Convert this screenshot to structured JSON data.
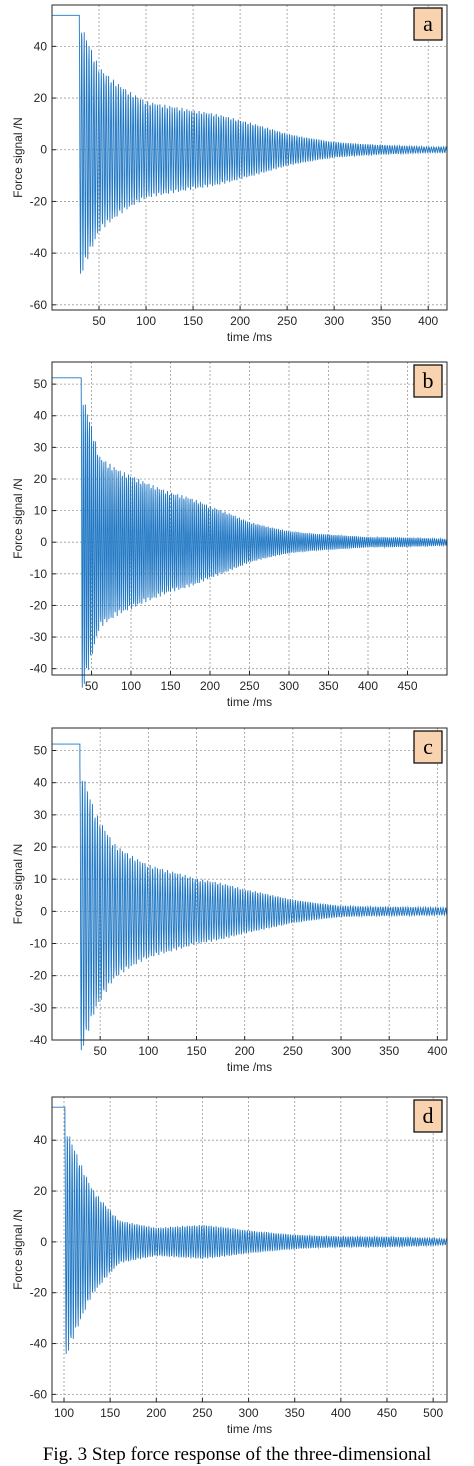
{
  "caption": "Fig. 3 Step force response of the three-dimensional",
  "colors": {
    "signal": "#1f77c4",
    "label_box_fill": "#f9d3b0",
    "grid": "#9a9a9a"
  },
  "chart_data": [
    {
      "type": "line",
      "panel_label": "a",
      "xlabel": "time /ms",
      "ylabel": "Force signal /N",
      "xlim": [
        0,
        420
      ],
      "ylim": [
        -62,
        56
      ],
      "xticks": [
        50,
        100,
        150,
        200,
        250,
        300,
        350,
        400
      ],
      "yticks": [
        -60,
        -40,
        -20,
        0,
        20,
        40
      ],
      "grid": true,
      "step": {
        "initial": 52,
        "release_time": 29
      },
      "envelope": [
        [
          30,
          50
        ],
        [
          50,
          35
        ],
        [
          100,
          22
        ],
        [
          150,
          15
        ],
        [
          200,
          10
        ],
        [
          250,
          6
        ],
        [
          300,
          3.5
        ],
        [
          350,
          2
        ],
        [
          400,
          1
        ],
        [
          420,
          1
        ]
      ],
      "series": [
        {
          "values_summary": "oscillation decaying from about +/-50 N to 0 N"
        }
      ]
    },
    {
      "type": "line",
      "panel_label": "b",
      "xlabel": "time /ms",
      "ylabel": "Force signal /N",
      "xlim": [
        0,
        500
      ],
      "ylim": [
        -42,
        57
      ],
      "xticks": [
        50,
        100,
        150,
        200,
        250,
        300,
        350,
        400,
        450
      ],
      "yticks": [
        -40,
        -30,
        -20,
        -10,
        0,
        10,
        20,
        30,
        40,
        50
      ],
      "grid": true,
      "step": {
        "initial": 52,
        "release_time": 37
      },
      "envelope": [
        [
          38,
          48
        ],
        [
          50,
          39
        ],
        [
          60,
          30
        ],
        [
          100,
          25
        ],
        [
          150,
          16
        ],
        [
          200,
          10
        ],
        [
          250,
          6
        ],
        [
          300,
          4
        ],
        [
          400,
          1.5
        ],
        [
          500,
          1
        ]
      ],
      "series": [
        {
          "values_summary": "oscillation decaying from about +48 / -39 N to 0 N"
        }
      ]
    },
    {
      "type": "line",
      "panel_label": "c",
      "xlabel": "time /ms",
      "ylabel": "Force signal /N",
      "xlim": [
        0,
        410
      ],
      "ylim": [
        -40,
        57
      ],
      "xticks": [
        50,
        100,
        150,
        200,
        250,
        300,
        350,
        400
      ],
      "yticks": [
        -40,
        -30,
        -20,
        -10,
        0,
        10,
        20,
        30,
        40,
        50
      ],
      "grid": true,
      "step": {
        "initial": 52,
        "release_time": 29
      },
      "envelope": [
        [
          30,
          45
        ],
        [
          45,
          33
        ],
        [
          65,
          24
        ],
        [
          100,
          17
        ],
        [
          150,
          10
        ],
        [
          200,
          6
        ],
        [
          250,
          3.5
        ],
        [
          300,
          2
        ],
        [
          410,
          1
        ]
      ],
      "series": [
        {
          "values_summary": "oscillation decaying from about +45 / -34 N to 0 N"
        }
      ]
    },
    {
      "type": "line",
      "panel_label": "d",
      "xlabel": "time /ms",
      "ylabel": "Force signal /N",
      "xlim": [
        87,
        515
      ],
      "ylim": [
        -63,
        57
      ],
      "xticks": [
        100,
        150,
        200,
        250,
        300,
        350,
        400,
        450,
        500
      ],
      "yticks": [
        -60,
        -40,
        -20,
        0,
        20,
        40
      ],
      "grid": true,
      "step": {
        "initial": 53,
        "release_time": 101
      },
      "envelope": [
        [
          102,
          46
        ],
        [
          130,
          24
        ],
        [
          160,
          10
        ],
        [
          200,
          6
        ],
        [
          250,
          6
        ],
        [
          300,
          4
        ],
        [
          350,
          3
        ],
        [
          400,
          2.5
        ],
        [
          450,
          2
        ],
        [
          515,
          1
        ]
      ],
      "series": [
        {
          "values_summary": "oscillation decaying from about +46 / -46 N to 0 N"
        }
      ]
    }
  ]
}
